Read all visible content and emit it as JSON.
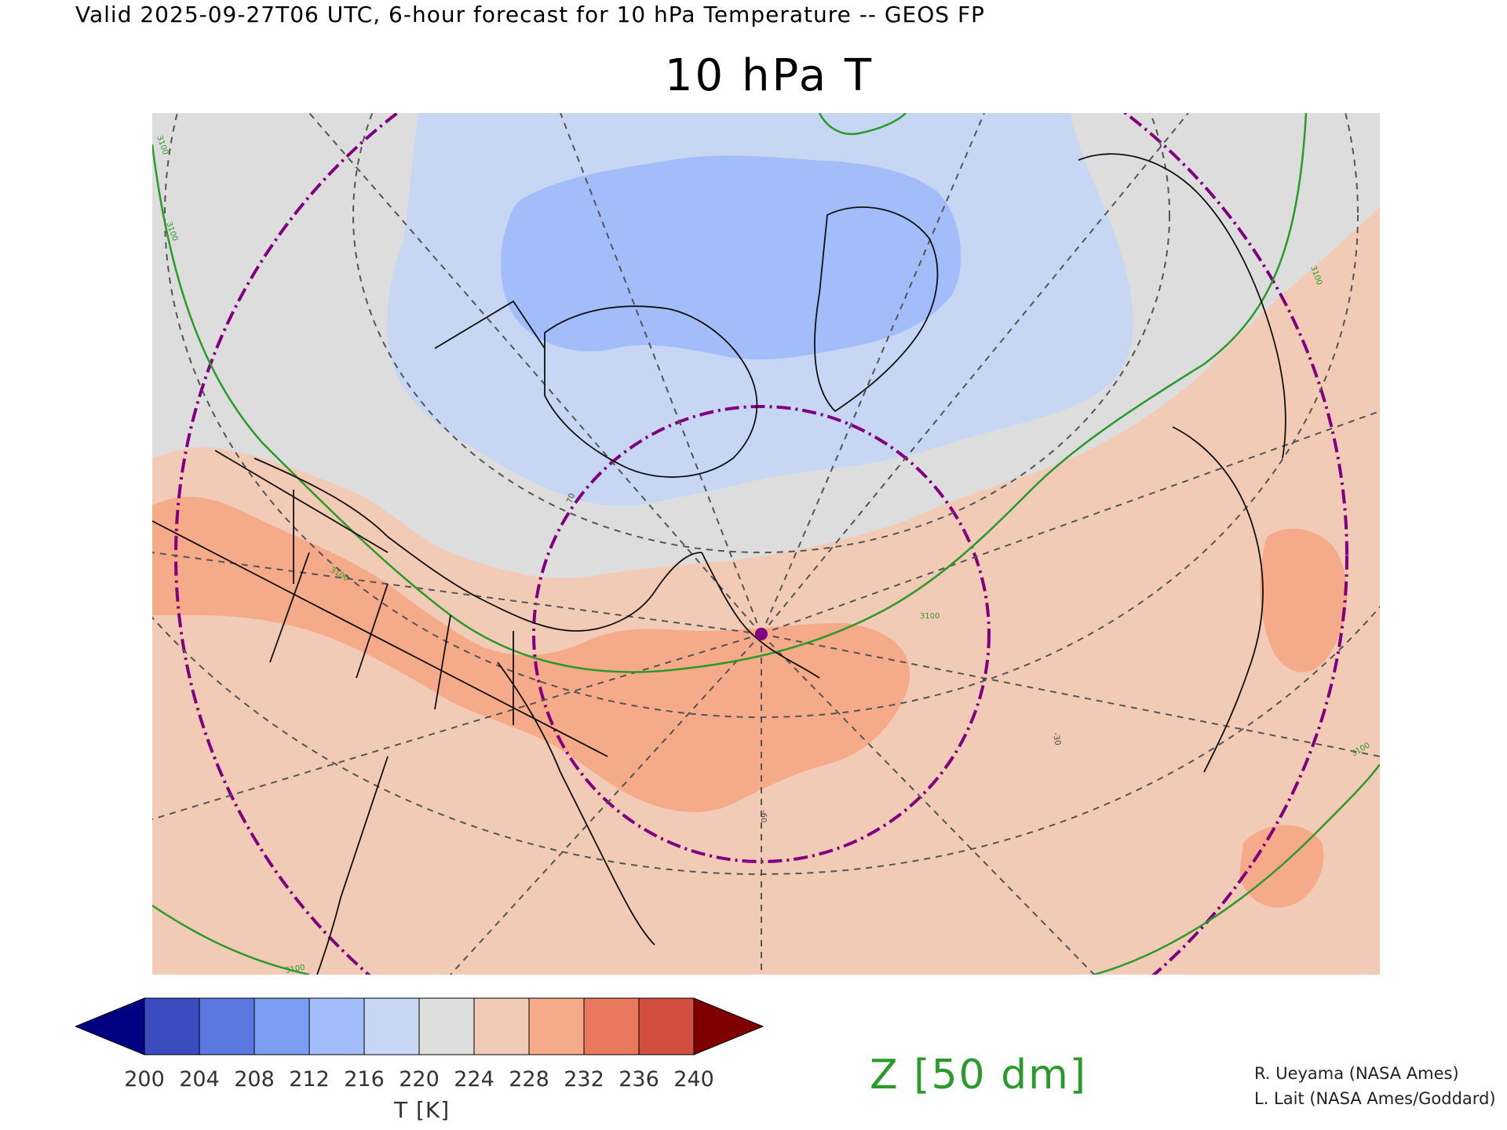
{
  "header": {
    "valid_line": "Valid 2025-09-27T06 UTC, 6-hour forecast for 10 hPa Temperature -- GEOS FP",
    "title": "10 hPa T"
  },
  "map": {
    "projection": "polar stereographic",
    "region": "North America, Arctic and North Atlantic",
    "overlays": [
      "temperature shading",
      "geopotential height contour (green)",
      "lat/lon graticule (dashed)",
      "range rings (purple dash-dot)",
      "coastlines and state/province borders",
      "station marker (purple dot)"
    ],
    "contour_labels": [
      "3100",
      "3100",
      "3100",
      "3100",
      "3100",
      "3100",
      "3100"
    ],
    "graticule_labels": [
      "-30",
      "-60",
      "70"
    ],
    "marker": {
      "name": "station-marker",
      "color": "#800080"
    }
  },
  "colorbar": {
    "ticks": [
      "200",
      "204",
      "208",
      "212",
      "216",
      "220",
      "224",
      "228",
      "232",
      "236",
      "240"
    ],
    "colors": [
      "#000080",
      "#3b4cc0",
      "#5b78e0",
      "#7b9ef2",
      "#a2bdfa",
      "#c6d6f3",
      "#dddddd",
      "#f2cbb7",
      "#f5aa89",
      "#e8785e",
      "#d24e3f",
      "#800000"
    ],
    "units": "T [K]"
  },
  "contour_legend": {
    "label": "Z [50 dm]",
    "color": "#2a9a2a"
  },
  "credits": [
    "R. Ueyama (NASA Ames)",
    "L. Lait (NASA Ames/Goddard)"
  ]
}
